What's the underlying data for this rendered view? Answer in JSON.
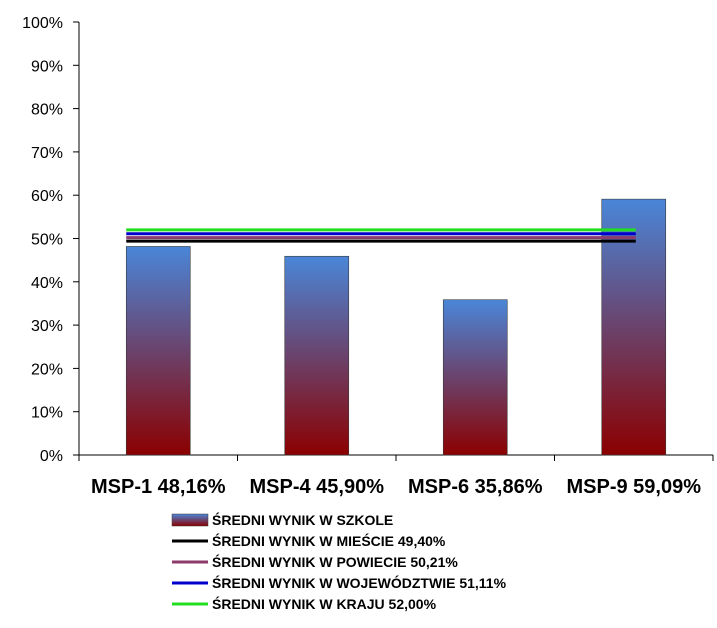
{
  "chart_data": {
    "type": "bar",
    "ylim": [
      0,
      100
    ],
    "yticks": [
      {
        "value": 0,
        "label": "0%"
      },
      {
        "value": 10,
        "label": "10%"
      },
      {
        "value": 20,
        "label": "20%"
      },
      {
        "value": 30,
        "label": "30%"
      },
      {
        "value": 40,
        "label": "40%"
      },
      {
        "value": 50,
        "label": "50%"
      },
      {
        "value": 60,
        "label": "60%"
      },
      {
        "value": 70,
        "label": "70%"
      },
      {
        "value": 80,
        "label": "80%"
      },
      {
        "value": 90,
        "label": "90%"
      },
      {
        "value": 100,
        "label": "100%"
      }
    ],
    "categories": [
      "MSP-1 48,16%",
      "MSP-4 45,90%",
      "MSP-6 35,86%",
      "MSP-9 59,09%"
    ],
    "series": [
      {
        "name": "ŚREDNI WYNIK W SZKOLE",
        "type": "bar",
        "values": [
          48.16,
          45.9,
          35.86,
          59.09
        ],
        "color_top": "#4a86d8",
        "color_bottom": "#8b0000"
      }
    ],
    "reference_lines": [
      {
        "name": "ŚREDNI WYNIK W MIEŚCIE 49,40%",
        "value": 49.4,
        "color": "#000000"
      },
      {
        "name": "ŚREDNI WYNIK W POWIECIE 50,21%",
        "value": 50.21,
        "color": "#8e3a6b"
      },
      {
        "name": "ŚREDNI WYNIK W WOJEWÓDZTWIE 51,11%",
        "value": 51.11,
        "color": "#0000cc"
      },
      {
        "name": "ŚREDNI WYNIK W KRAJU 52,00%",
        "value": 52.0,
        "color": "#22dd22"
      }
    ],
    "legend_position": "bottom",
    "grid": false
  }
}
